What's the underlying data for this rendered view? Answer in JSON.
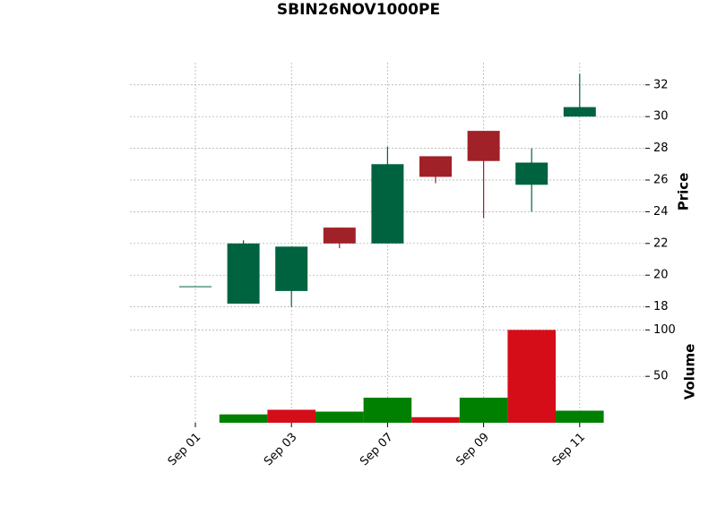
{
  "chart_data": [
    {
      "type": "candlestick",
      "title": "SBIN26NOV1000PE",
      "y_label": "Price",
      "categories": [
        "Sep 01",
        null,
        "Sep 03",
        null,
        "Sep 07",
        null,
        "Sep 09",
        null,
        "Sep 11"
      ],
      "open": [
        19.3,
        18.2,
        19.0,
        23.0,
        22.0,
        27.5,
        29.1,
        25.7,
        30.0
      ],
      "high": [
        19.3,
        22.2,
        21.8,
        23.0,
        28.1,
        27.5,
        29.1,
        28.0,
        32.7
      ],
      "low": [
        19.3,
        18.2,
        18.0,
        21.7,
        22.0,
        25.8,
        23.6,
        24.0,
        30.0
      ],
      "close": [
        19.3,
        22.0,
        21.8,
        22.0,
        27.0,
        26.2,
        27.2,
        27.1,
        30.6
      ],
      "up_color": "#006340",
      "down_color": "#a02128",
      "ylim": [
        17.3,
        33.4
      ],
      "yticks": [
        18,
        20,
        22,
        24,
        26,
        28,
        30,
        32
      ],
      "grid": true
    },
    {
      "type": "bar",
      "y_label": "Volume",
      "values": [
        0,
        9,
        14,
        12,
        27,
        6,
        27,
        100,
        13
      ],
      "colors": [
        "#d50d18",
        "#008000",
        "#d50d18",
        "#008000",
        "#008000",
        "#d50d18",
        "#008000",
        "#d50d18",
        "#008000"
      ],
      "ylim": [
        0,
        110
      ],
      "yticks": [
        50,
        100
      ],
      "grid": true
    }
  ]
}
